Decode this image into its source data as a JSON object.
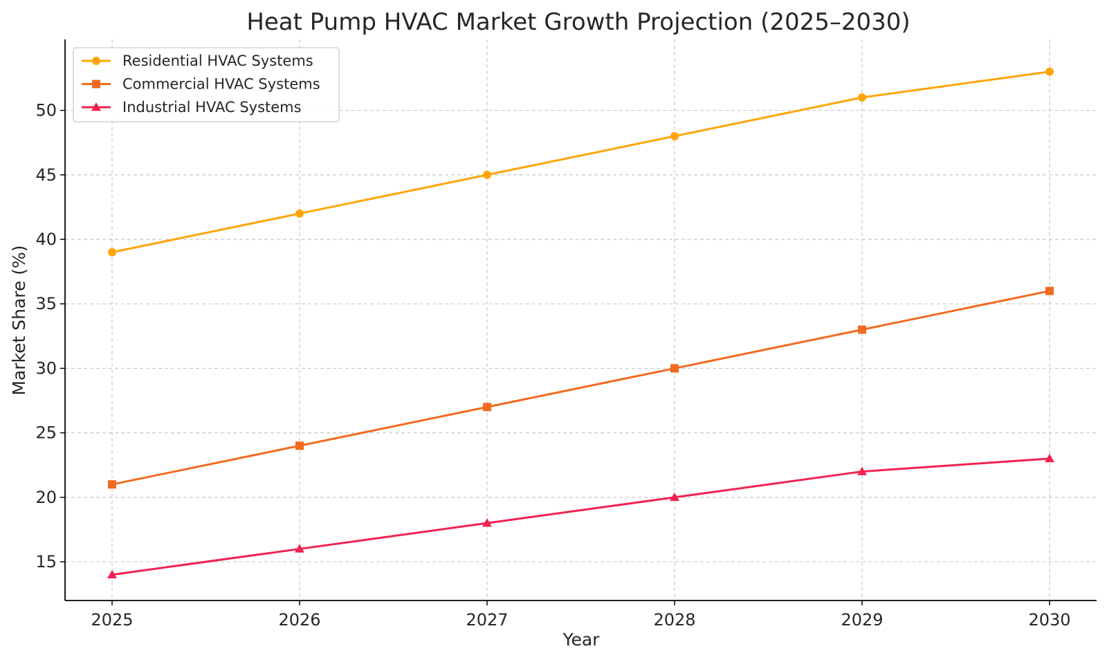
{
  "chart_data": {
    "type": "line",
    "title": "Heat Pump HVAC Market Growth Projection (2025–2030)",
    "xlabel": "Year",
    "ylabel": "Market Share (%)",
    "x": [
      2025,
      2026,
      2027,
      2028,
      2029,
      2030
    ],
    "x_tick_labels": [
      "2025",
      "2026",
      "2027",
      "2028",
      "2029",
      "2030"
    ],
    "ylim": [
      12,
      55.5
    ],
    "y_ticks": [
      15,
      20,
      25,
      30,
      35,
      40,
      45,
      50
    ],
    "grid": true,
    "legend_position": "top-left",
    "series": [
      {
        "name": "Residential HVAC Systems",
        "values": [
          39,
          42,
          45,
          48,
          51,
          53
        ],
        "color": "#FFA50A",
        "marker": "circle"
      },
      {
        "name": "Commercial HVAC Systems",
        "values": [
          21,
          24,
          27,
          30,
          33,
          36
        ],
        "color": "#F26A1F",
        "marker": "square"
      },
      {
        "name": "Industrial HVAC Systems",
        "values": [
          14,
          16,
          18,
          20,
          22,
          23
        ],
        "color": "#F2224F",
        "marker": "triangle"
      }
    ]
  }
}
